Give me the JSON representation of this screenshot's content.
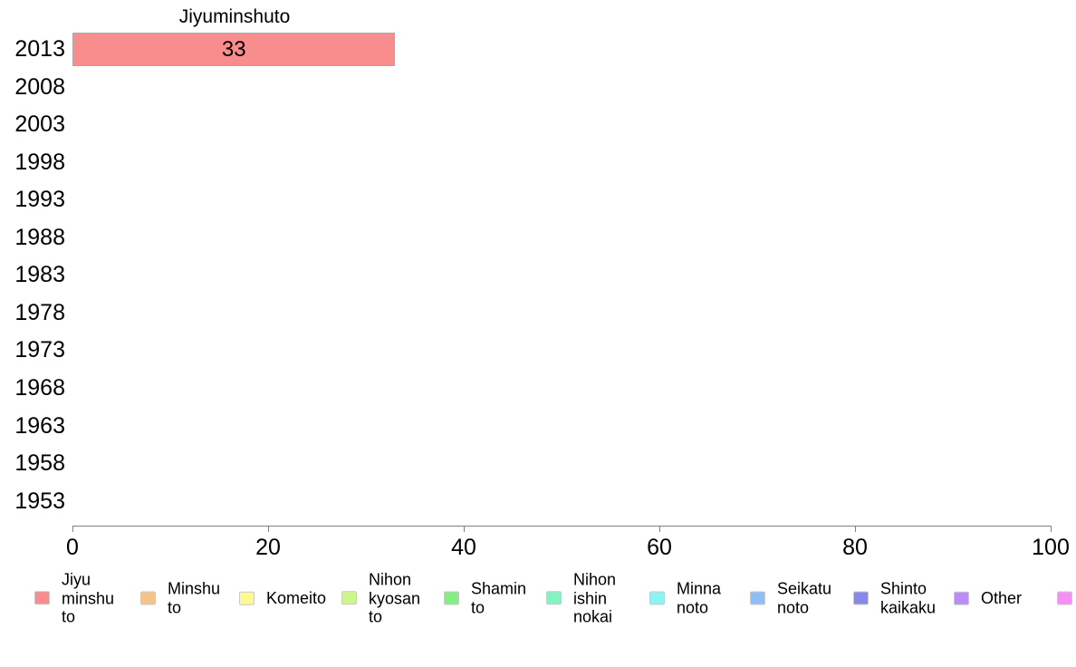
{
  "chart_data": {
    "type": "bar",
    "orientation": "horizontal",
    "title": "Jiyuminshuto",
    "xlabel": "",
    "ylabel": "",
    "categories": [
      "2013",
      "2008",
      "2003",
      "1998",
      "1993",
      "1988",
      "1983",
      "1978",
      "1973",
      "1968",
      "1963",
      "1958",
      "1953"
    ],
    "values": [
      33,
      null,
      null,
      null,
      null,
      null,
      null,
      null,
      null,
      null,
      null,
      null,
      null
    ],
    "bar_labels": [
      "33",
      "",
      "",
      "",
      "",
      "",
      "",
      "",
      "",
      "",
      "",
      "",
      ""
    ],
    "xlim": [
      0,
      100
    ],
    "x_ticks": [
      "0",
      "20",
      "40",
      "60",
      "80",
      "100"
    ],
    "grid": false,
    "legend_position": "bottom",
    "bar_color": "#F98C8C",
    "bar_border_color": "#A8A8A8",
    "axis_color": "#808080",
    "swatch_border_color": "#C9C9C9",
    "legend": [
      {
        "label": "Jiyu minshu to",
        "lines": [
          "Jiyu",
          "minshu",
          "to"
        ],
        "color": "#F98C8C"
      },
      {
        "label": "Minshu to",
        "lines": [
          "Minshu",
          "to"
        ],
        "color": "#F7C488"
      },
      {
        "label": "Komeito",
        "lines": [
          "Komeito"
        ],
        "color": "#FAFA90"
      },
      {
        "label": "Nihon kyosan to",
        "lines": [
          "Nihon",
          "kyosan",
          "to"
        ],
        "color": "#CDF78C"
      },
      {
        "label": "Shamin to",
        "lines": [
          "Shamin",
          "to"
        ],
        "color": "#84EE84"
      },
      {
        "label": "Nihon ishin nokai",
        "lines": [
          "Nihon",
          "ishin",
          "nokai"
        ],
        "color": "#86F2C1"
      },
      {
        "label": "Minna noto",
        "lines": [
          "Minna",
          "noto"
        ],
        "color": "#8DF4F4"
      },
      {
        "label": "Seikatu noto",
        "lines": [
          "Seikatu",
          "noto"
        ],
        "color": "#90BDF6"
      },
      {
        "label": "Shinto kaikaku",
        "lines": [
          "Shinto",
          "kaikaku"
        ],
        "color": "#8888EB"
      },
      {
        "label": "Other",
        "lines": [
          "Other"
        ],
        "color": "#BA8CF6"
      },
      {
        "label": "",
        "lines": [],
        "color": "#F78DF7"
      }
    ]
  }
}
